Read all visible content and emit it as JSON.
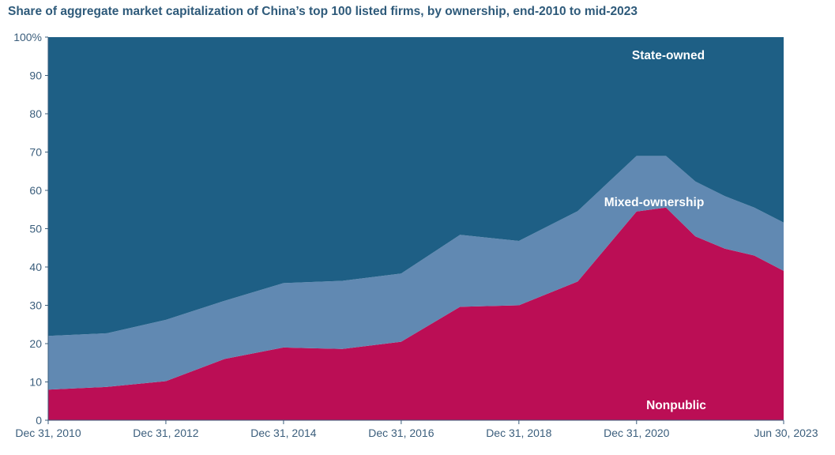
{
  "chart_data": {
    "type": "area",
    "stacked": true,
    "title": "Share of aggregate market capitalization of China’s top 100 listed firms, by ownership, end-2010 to mid-2023",
    "xlabel": "",
    "ylabel": "",
    "ylim": [
      0,
      100
    ],
    "y_ticks": [
      {
        "value": 0,
        "label": "0"
      },
      {
        "value": 10,
        "label": "10"
      },
      {
        "value": 20,
        "label": "20"
      },
      {
        "value": 30,
        "label": "30"
      },
      {
        "value": 40,
        "label": "40"
      },
      {
        "value": 50,
        "label": "50"
      },
      {
        "value": 60,
        "label": "60"
      },
      {
        "value": 70,
        "label": "70"
      },
      {
        "value": 80,
        "label": "80"
      },
      {
        "value": 90,
        "label": "90"
      },
      {
        "value": 100,
        "label": "100%"
      }
    ],
    "x_ticks": [
      {
        "value": 0,
        "label": "Dec 31, 2010"
      },
      {
        "value": 2,
        "label": "Dec 31, 2012"
      },
      {
        "value": 4,
        "label": "Dec 31, 2014"
      },
      {
        "value": 6,
        "label": "Dec 31, 2016"
      },
      {
        "value": 8,
        "label": "Dec 31, 2018"
      },
      {
        "value": 10,
        "label": "Dec 31, 2020"
      },
      {
        "value": 12.5,
        "label": "Jun 30, 2023"
      }
    ],
    "x": [
      0,
      1,
      2,
      3,
      4,
      5,
      6,
      7,
      8,
      9,
      10,
      10.5,
      11,
      11.5,
      12,
      12.5
    ],
    "series": [
      {
        "name": "Nonpublic",
        "color": "#bb0e55",
        "values": [
          8,
          8.7,
          10.2,
          16,
          19,
          18.6,
          20.5,
          29.6,
          30,
          36.2,
          54.5,
          55.5,
          48,
          44.8,
          43,
          39
        ]
      },
      {
        "name": "Mixed-ownership",
        "color": "#6189b2",
        "values": [
          14,
          14,
          16,
          15.2,
          16.8,
          17.8,
          17.8,
          18.8,
          16.8,
          18.4,
          14.5,
          13.5,
          14.3,
          13.7,
          12.5,
          12.6
        ]
      },
      {
        "name": "State-owned",
        "color": "#1e5f85",
        "values": [
          78,
          77.3,
          73.8,
          68.8,
          64.2,
          63.6,
          61.7,
          51.6,
          53.2,
          45.4,
          31,
          31,
          37.7,
          41.5,
          44.5,
          48.4
        ]
      }
    ]
  }
}
